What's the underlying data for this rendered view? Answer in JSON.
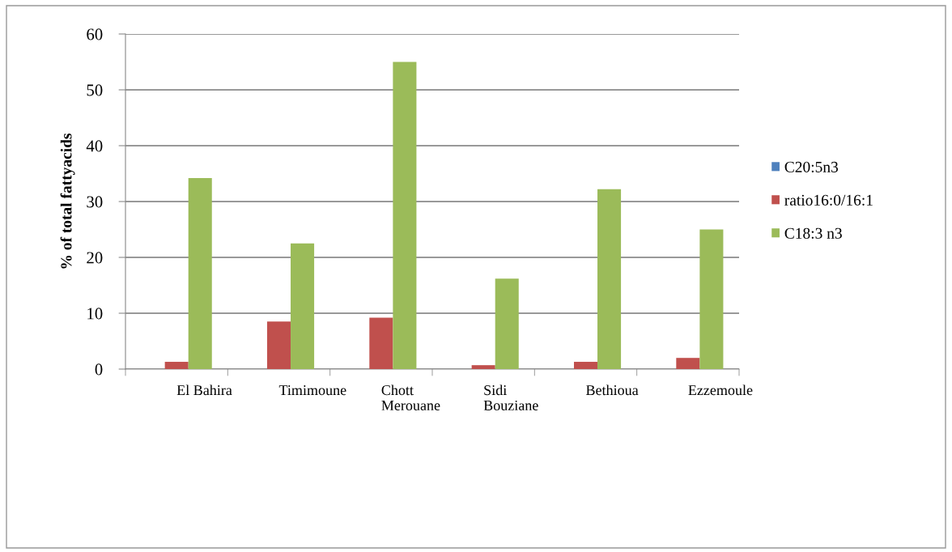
{
  "chart_data": {
    "type": "bar",
    "ylabel": "% of total fattyacids",
    "categories": [
      "El Bahira",
      "Timimoune",
      "Chott\nMerouane",
      "Sidi\nBouziane",
      "Bethioua",
      "Ezzemoule"
    ],
    "series": [
      {
        "name": "C20:5n3",
        "color": "#4f81bd",
        "values": [
          0,
          0,
          0,
          0,
          0,
          0
        ]
      },
      {
        "name": "ratio16:0/16:1",
        "color": "#c0504d",
        "values": [
          1.3,
          8.5,
          9.2,
          0.7,
          1.3,
          2.0
        ]
      },
      {
        "name": "C18:3 n3",
        "color": "#9bbb59",
        "values": [
          34.2,
          22.5,
          55.0,
          16.2,
          32.2,
          25.0
        ]
      }
    ],
    "ylim": [
      0,
      60
    ],
    "yticks": [
      0,
      10,
      20,
      30,
      40,
      50,
      60
    ],
    "grid": "y",
    "legend": "right"
  }
}
